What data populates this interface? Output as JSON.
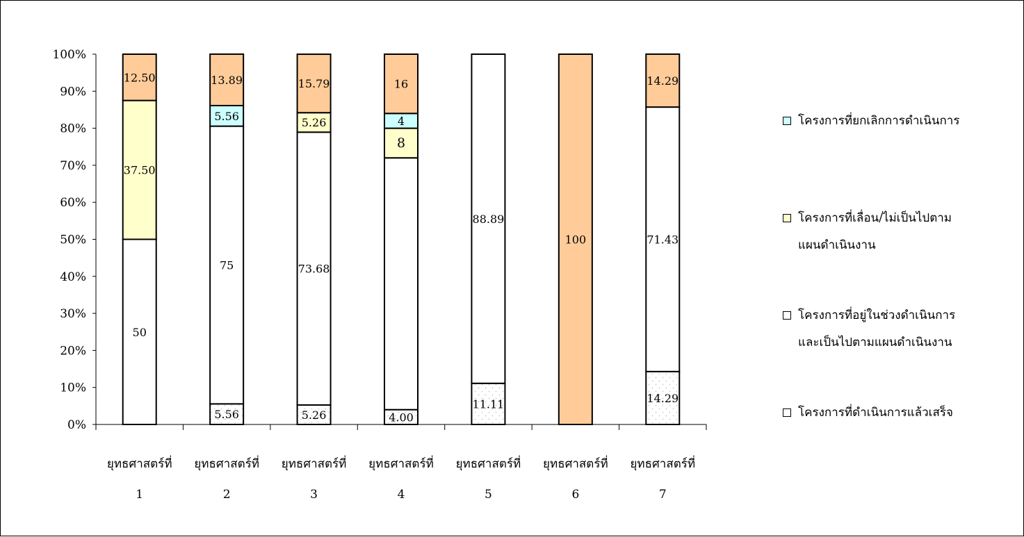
{
  "chart_data": {
    "type": "bar",
    "stacked": true,
    "percent_stacked": true,
    "categories": [
      [
        "ยุทธศาสตร์ที่",
        "1"
      ],
      [
        "ยุทธศาสตร์ที่",
        "2"
      ],
      [
        "ยุทธศาสตร์ที่",
        "3"
      ],
      [
        "ยุทธศาสตร์ที่",
        "4"
      ],
      [
        "ยุทธศาสตร์ที่",
        "5"
      ],
      [
        "ยุทธศาสตร์ที่",
        "6"
      ],
      [
        "ยุทธศาสตร์ที่",
        "7"
      ]
    ],
    "y_ticks": [
      "0%",
      "10%",
      "20%",
      "30%",
      "40%",
      "50%",
      "60%",
      "70%",
      "80%",
      "90%",
      "100%"
    ],
    "ylim": [
      0,
      100
    ],
    "grid": false,
    "legend_position": "right",
    "series": [
      {
        "name": "โครงการที่ดำเนินการแล้วเสร็จ",
        "color": "#ffffff",
        "pattern": "dots",
        "values": [
          0,
          5.56,
          5.26,
          4.0,
          11.11,
          0,
          14.29
        ],
        "labels": [
          "",
          "5.56",
          "5.26",
          "4.00",
          "11.11",
          "",
          "14.29"
        ]
      },
      {
        "name": "โครงการที่อยู่ในช่วงดำเนินการและเป็นไปตามแผนดำเนินงาน",
        "color": "#ffffff",
        "pattern": "none",
        "values": [
          50,
          75,
          73.68,
          68,
          88.89,
          0,
          71.43
        ],
        "labels": [
          "50",
          "75",
          "73.68",
          "",
          "88.89",
          "",
          "71.43"
        ]
      },
      {
        "name": "โครงการที่เลื่อน/ไม่เป็นไปตามแผนดำเนินงาน",
        "color": "#ffffcc",
        "pattern": "none",
        "values": [
          37.5,
          0,
          5.26,
          8,
          0,
          0,
          0
        ],
        "labels": [
          "37.50",
          "",
          "5.26",
          "8",
          "",
          "",
          ""
        ]
      },
      {
        "name": "โครงการที่ยกเลิกการดำเนินการ",
        "color": "#ccffff",
        "pattern": "none",
        "values": [
          0,
          5.56,
          0,
          4,
          0,
          0,
          0
        ],
        "labels": [
          "",
          "5.56",
          "",
          "4",
          "",
          "",
          ""
        ]
      },
      {
        "name": "",
        "color": "#ffcc99",
        "pattern": "none",
        "values": [
          12.5,
          13.89,
          15.79,
          16,
          0,
          100,
          14.29
        ],
        "labels": [
          "12.50",
          "13.89",
          "15.79",
          "16",
          "",
          "100",
          "14.29"
        ]
      }
    ],
    "legend": [
      {
        "lines": [
          "โครงการที่ยกเลิกการดำเนินการ"
        ],
        "color": "#ccffff"
      },
      {
        "lines": [
          "โครงการที่เลื่อน/ไม่เป็นไปตาม",
          "แผนดำเนินงาน"
        ],
        "color": "#ffffcc"
      },
      {
        "lines": [
          "โครงการที่อยู่ในช่วงดำเนินการ",
          "และเป็นไปตามแผนดำเนินงาน"
        ],
        "color": "#ffffff"
      },
      {
        "lines": [
          "โครงการที่ดำเนินการแล้วเสร็จ"
        ],
        "color": "#ffffff"
      }
    ]
  }
}
